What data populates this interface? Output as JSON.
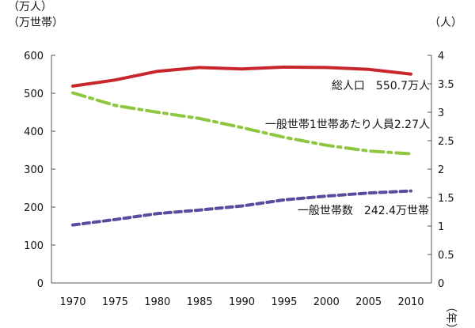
{
  "chart_data": {
    "type": "line",
    "title": "",
    "left_axis": {
      "unit_line1": "（万人）",
      "unit_line2": "（万世帯）",
      "ylim": [
        0,
        600
      ],
      "ticks": [
        0,
        100,
        200,
        300,
        400,
        500,
        600
      ]
    },
    "right_axis": {
      "unit": "（人）",
      "ylim": [
        0,
        4
      ],
      "ticks": [
        "0",
        "0.5",
        "1",
        "1.5",
        "2",
        "2.5",
        "3",
        "3.5",
        "4"
      ]
    },
    "x_axis": {
      "unit": "（年）",
      "categories": [
        "1970",
        "1975",
        "1980",
        "1985",
        "1990",
        "1995",
        "2000",
        "2005",
        "2010"
      ]
    },
    "grid": false,
    "series": [
      {
        "name": "総人口",
        "label": "総人口　550.7万人",
        "axis": "left",
        "color": "#c8262c",
        "style": "solid",
        "values": [
          519,
          535,
          558,
          568,
          564,
          569,
          568,
          563,
          550.7
        ]
      },
      {
        "name": "一般世帯1世帯あたり人員",
        "label": "一般世帯1世帯あたり人員2.27人",
        "axis": "right",
        "color": "#8ec63f",
        "style": "dash-dot",
        "values": [
          3.34,
          3.12,
          3.0,
          2.89,
          2.73,
          2.56,
          2.42,
          2.32,
          2.27
        ]
      },
      {
        "name": "一般世帯数",
        "label": "一般世帯数　242.4万世帯",
        "axis": "left",
        "color": "#5b4a9e",
        "style": "dashed",
        "values": [
          153,
          167,
          183,
          192,
          203,
          219,
          229,
          237,
          242.4
        ]
      }
    ]
  }
}
